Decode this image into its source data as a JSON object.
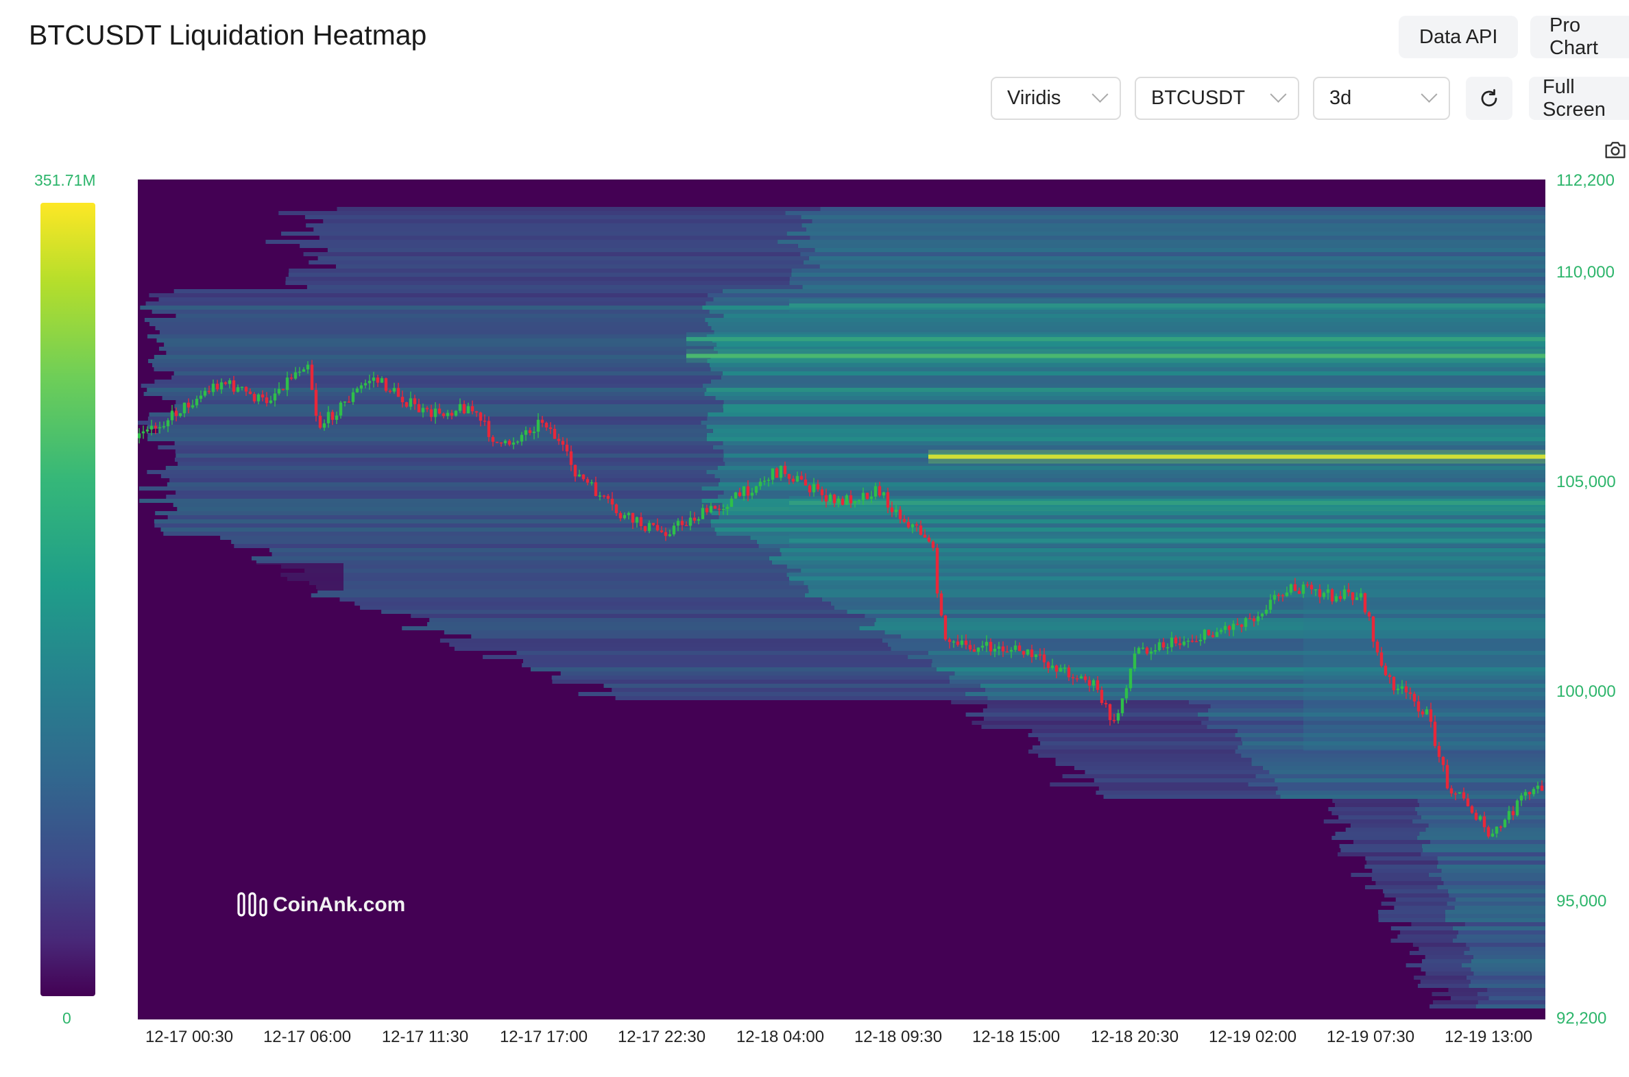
{
  "page": {
    "title": "BTCUSDT Liquidation Heatmap"
  },
  "header": {
    "data_api_label": "Data API",
    "pro_chart_label": "Pro Chart"
  },
  "controls": {
    "colormap": "Viridis",
    "symbol": "BTCUSDT",
    "range": "3d",
    "fullscreen_label": "Full Screen"
  },
  "colorbar": {
    "max_label": "351.71M",
    "min_label": "0"
  },
  "watermark": "CoinAnk.com",
  "colors": {
    "up": "#2fbf4a",
    "down": "#e8283a",
    "axis_text": "#2db56b",
    "heat_low": "#440154",
    "heat_high": "#fde725"
  },
  "icons": {
    "refresh": "refresh-icon",
    "camera": "camera-icon",
    "chevron": "chevron-down-icon"
  },
  "chart_data": {
    "type": "heatmap",
    "y_axis": {
      "ticks": [
        "112,200",
        "110,000",
        "105,000",
        "100,000",
        "95,000",
        "92,200"
      ],
      "min": 92200,
      "max": 112200
    },
    "x_axis": {
      "ticks": [
        "12-17 00:30",
        "12-17 06:00",
        "12-17 11:30",
        "12-17 17:00",
        "12-17 22:30",
        "12-18 04:00",
        "12-18 09:30",
        "12-18 15:00",
        "12-18 20:30",
        "12-19 02:00",
        "12-19 07:30",
        "12-19 13:00"
      ]
    },
    "price_path": [
      [
        "12-17 00:00",
        106700
      ],
      [
        "12-17 02:00",
        107400
      ],
      [
        "12-17 04:00",
        106900
      ],
      [
        "12-17 06:00",
        107900
      ],
      [
        "12-17 06:30",
        106300
      ],
      [
        "12-17 09:00",
        107500
      ],
      [
        "12-17 11:30",
        106600
      ],
      [
        "12-17 13:30",
        106800
      ],
      [
        "12-17 15:00",
        105800
      ],
      [
        "12-17 17:00",
        106500
      ],
      [
        "12-17 18:30",
        105200
      ],
      [
        "12-17 20:30",
        104200
      ],
      [
        "12-17 22:30",
        103800
      ],
      [
        "12-18 01:30",
        104500
      ],
      [
        "12-18 04:00",
        105300
      ],
      [
        "12-18 06:30",
        104500
      ],
      [
        "12-18 08:30",
        104800
      ],
      [
        "12-18 09:30",
        104200
      ],
      [
        "12-18 11:00",
        103600
      ],
      [
        "12-18 11:30",
        101500
      ],
      [
        "12-18 12:00",
        101100
      ],
      [
        "12-18 15:00",
        101000
      ],
      [
        "12-18 18:30",
        100200
      ],
      [
        "12-18 19:30",
        99200
      ],
      [
        "12-18 20:30",
        101000
      ],
      [
        "12-18 23:30",
        101300
      ],
      [
        "12-19 02:00",
        101800
      ],
      [
        "12-19 03:30",
        102500
      ],
      [
        "12-19 05:30",
        102300
      ],
      [
        "12-19 07:00",
        102300
      ],
      [
        "12-19 08:00",
        100400
      ],
      [
        "12-19 10:00",
        99500
      ],
      [
        "12-19 11:00",
        97800
      ],
      [
        "12-19 12:00",
        97300
      ],
      [
        "12-19 13:00",
        96500
      ],
      [
        "12-19 14:30",
        97500
      ],
      [
        "12-19 16:00",
        97900
      ]
    ],
    "bands": [
      {
        "price": 105600,
        "level": 1.0
      },
      {
        "price": 108000,
        "level": 0.72
      },
      {
        "price": 108400,
        "level": 0.62
      },
      {
        "price": 109200,
        "level": 0.55
      },
      {
        "price": 104500,
        "level": 0.6
      },
      {
        "price": 103600,
        "level": 0.52
      },
      {
        "price": 102700,
        "level": 0.48
      }
    ]
  }
}
